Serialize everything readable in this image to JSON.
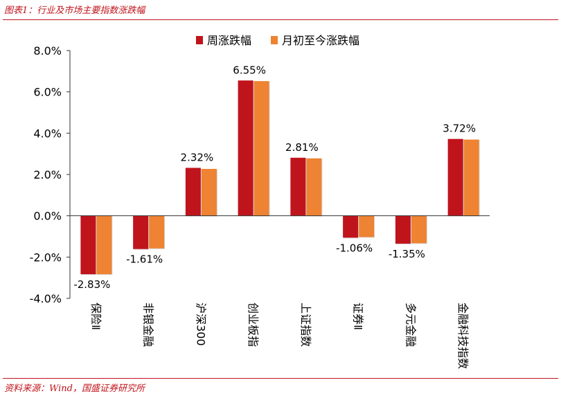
{
  "header": {
    "title": "图表1：行业及市场主要指数涨跌幅"
  },
  "footer": {
    "source": "资料来源：Wind，国盛证券研究所"
  },
  "colors": {
    "weekly": "#c0141c",
    "monthly": "#ee8333",
    "accent": "#c0141c"
  },
  "chart_data": {
    "type": "bar",
    "title": "",
    "xlabel": "",
    "ylabel": "",
    "categories": [
      "保险Ⅱ",
      "非银金融",
      "沪深300",
      "创业板指",
      "上证指数",
      "证券Ⅱ",
      "多元金融",
      "金融科技指数"
    ],
    "series": [
      {
        "name": "周涨跌幅",
        "values": [
          -2.83,
          -1.61,
          2.32,
          6.55,
          2.81,
          -1.06,
          -1.35,
          3.72
        ],
        "data_labels": [
          "-2.83%",
          "-1.61%",
          "2.32%",
          "6.55%",
          "2.81%",
          "-1.06%",
          "-1.35%",
          "3.72%"
        ]
      },
      {
        "name": "月初至今涨跌幅",
        "values": [
          -2.83,
          -1.58,
          2.27,
          6.52,
          2.78,
          -1.03,
          -1.33,
          3.69
        ]
      }
    ],
    "ylim": [
      -4.0,
      8.0
    ],
    "yticks": [
      -4.0,
      -2.0,
      0.0,
      2.0,
      4.0,
      6.0,
      8.0
    ],
    "ytick_labels": [
      "-4.0%",
      "-2.0%",
      "0.0%",
      "2.0%",
      "4.0%",
      "6.0%",
      "8.0%"
    ],
    "legend_position": "top-center",
    "grid": false
  }
}
